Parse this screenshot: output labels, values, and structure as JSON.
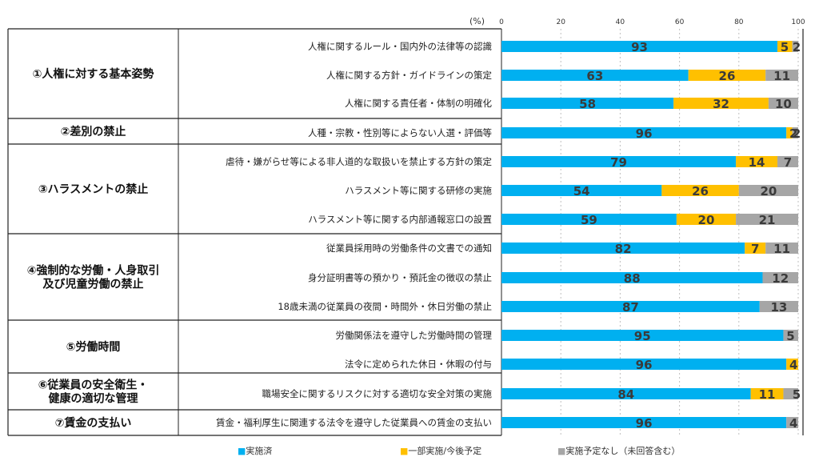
{
  "chart_data": {
    "type": "bar",
    "orientation": "horizontal",
    "stacked": true,
    "unit": "(%)",
    "xlim": [
      0,
      100
    ],
    "xticks": [
      "0",
      "20",
      "40",
      "60",
      "80",
      "100"
    ],
    "grid": true,
    "legend_position": "bottom",
    "legend": [
      {
        "label": "■実施済",
        "color": "#00b0f0"
      },
      {
        "label": "■一部実施/今後予定",
        "color": "#ffc000"
      },
      {
        "label": "■実施予定なし（未回答含む）",
        "color": "#a6a6a6"
      }
    ],
    "groups": [
      {
        "label": [
          "①人権に対する基本姿勢"
        ],
        "items": [
          {
            "label": "人権に関するルール・国内外の法律等の認識",
            "values": [
              93,
              5,
              2
            ]
          },
          {
            "label": "人権に関する方針・ガイドラインの策定",
            "values": [
              63,
              26,
              11
            ]
          },
          {
            "label": "人権に関する責任者・体制の明確化",
            "values": [
              58,
              32,
              10
            ]
          }
        ]
      },
      {
        "label": [
          "②差別の禁止"
        ],
        "items": [
          {
            "label": "人種・宗教・性別等によらない人選・評価等",
            "values": [
              96,
              2,
              2
            ]
          }
        ]
      },
      {
        "label": [
          "③ハラスメントの禁止"
        ],
        "items": [
          {
            "label": "虐待・嫌がらせ等による非人道的な取扱いを禁止する方針の策定",
            "values": [
              79,
              14,
              7
            ]
          },
          {
            "label": "ハラスメント等に関する研修の実施",
            "values": [
              54,
              26,
              20
            ]
          },
          {
            "label": "ハラスメント等に関する内部通報窓口の設置",
            "values": [
              59,
              20,
              21
            ]
          }
        ]
      },
      {
        "label": [
          "④強制的な労働・人身取引",
          "及び児童労働の禁止"
        ],
        "items": [
          {
            "label": "従業員採用時の労働条件の文書での通知",
            "values": [
              82,
              7,
              11
            ]
          },
          {
            "label": "身分証明書等の預かり・預託金の徴収の禁止",
            "values": [
              88,
              0,
              12
            ]
          },
          {
            "label": "18歳未満の従業員の夜間・時間外・休日労働の禁止",
            "values": [
              87,
              0,
              13
            ]
          }
        ]
      },
      {
        "label": [
          "⑤労働時間"
        ],
        "items": [
          {
            "label": "労働関係法を遵守した労働時間の管理",
            "values": [
              95,
              0,
              5
            ]
          },
          {
            "label": "法令に定められた休日・休暇の付与",
            "values": [
              96,
              4,
              0
            ]
          }
        ]
      },
      {
        "label": [
          "⑥従業員の安全衛生・",
          "健康の適切な管理"
        ],
        "items": [
          {
            "label": "職場安全に関するリスクに対する適切な安全対策の実施",
            "values": [
              84,
              11,
              5
            ]
          }
        ]
      },
      {
        "label": [
          "⑦賃金の支払い"
        ],
        "items": [
          {
            "label": "賃金・福利厚生に関連する法令を遵守した従業員への賃金の支払い",
            "values": [
              96,
              0,
              4
            ]
          }
        ]
      }
    ]
  }
}
